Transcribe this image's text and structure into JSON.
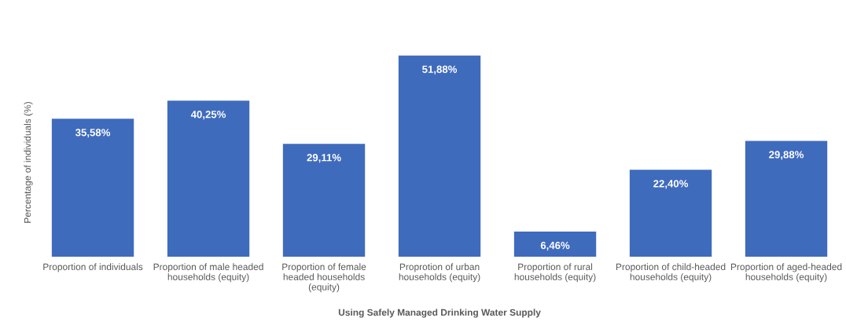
{
  "chart_data": {
    "type": "bar",
    "xlabel": "Using Safely Managed Drinking Water Supply",
    "ylabel": "Percentage of individuals (%)",
    "categories": [
      "Proportion of individuals",
      "Proportion of male headed\nhouseholds (equity)",
      "Proportion of female\nheaded households\n(equity)",
      "Proprotion of urban\nhouseholds (equity)",
      "Proportion of rural\nhouseholds (equity)",
      "Proportion of child-headed\nhouseholds (equity)",
      "Proportion of aged-headed\nhouseholds (equity)"
    ],
    "values": [
      35.58,
      40.25,
      29.11,
      51.88,
      6.46,
      22.4,
      29.88
    ],
    "value_labels": [
      "35,58%",
      "40,25%",
      "29,11%",
      "51,88%",
      "6,46%",
      "22,40%",
      "29,88%"
    ],
    "color": "#3f6bbd",
    "tick_labels": "x"
  }
}
